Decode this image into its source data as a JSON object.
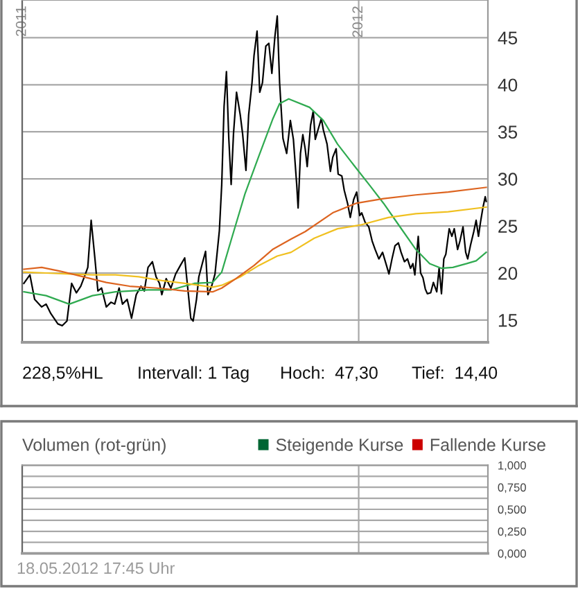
{
  "chart_data": [
    {
      "type": "line",
      "xlim": [
        2011.0,
        2012.384
      ],
      "xticks": [
        2011,
        2012
      ],
      "ylim": [
        12.64,
        49.0
      ],
      "yticks": [
        15,
        20,
        25,
        30,
        35,
        40,
        45
      ],
      "grid": true,
      "series": [
        {
          "color": "#000000",
          "x": [
            2011.005,
            2011.023,
            2011.037,
            2011.058,
            2011.071,
            2011.085,
            2011.106,
            2011.119,
            2011.133,
            2011.147,
            2011.161,
            2011.174,
            2011.188,
            2011.195,
            2011.205,
            2011.216,
            2011.225,
            2011.236,
            2011.25,
            2011.264,
            2011.275,
            2011.288,
            2011.298,
            2011.312,
            2011.325,
            2011.339,
            2011.353,
            2011.363,
            2011.374,
            2011.387,
            2011.398,
            2011.408,
            2011.415,
            2011.428,
            2011.442,
            2011.456,
            2011.47,
            2011.483,
            2011.494,
            2011.501,
            2011.508,
            2011.518,
            2011.525,
            2011.536,
            2011.545,
            2011.552,
            2011.563,
            2011.573,
            2011.586,
            2011.593,
            2011.6,
            2011.607,
            2011.614,
            2011.621,
            2011.628,
            2011.637,
            2011.648,
            2011.655,
            2011.665,
            2011.673,
            2011.683,
            2011.689,
            2011.698,
            2011.706,
            2011.714,
            2011.724,
            2011.733,
            2011.742,
            2011.751,
            2011.758,
            2011.765,
            2011.775,
            2011.786,
            2011.797,
            2011.806,
            2011.816,
            2011.82,
            2011.827,
            2011.834,
            2011.841,
            2011.847,
            2011.857,
            2011.865,
            2011.871,
            2011.879,
            2011.889,
            2011.895,
            2011.906,
            2011.916,
            2011.923,
            2011.933,
            2011.939,
            2011.95,
            2011.957,
            2011.967,
            2011.975,
            2011.985,
            2011.994,
            2012.003,
            2012.009,
            2012.019,
            2012.03,
            2012.04,
            2012.049,
            2012.06,
            2012.071,
            2012.081,
            2012.09,
            2012.099,
            2012.108,
            2012.118,
            2012.126,
            2012.136,
            2012.145,
            2012.154,
            2012.161,
            2012.167,
            2012.177,
            2012.184,
            2012.191,
            2012.198,
            2012.204,
            2012.214,
            2012.222,
            2012.232,
            2012.239,
            2012.246,
            2012.253,
            2012.259,
            2012.269,
            2012.277,
            2012.284,
            2012.294,
            2012.301,
            2012.31,
            2012.318,
            2012.324,
            2012.332,
            2012.342,
            2012.349,
            2012.356,
            2012.362,
            2012.369,
            2012.376,
            2012.379
          ],
          "values": [
            18.9,
            19.8,
            17.2,
            16.4,
            16.7,
            15.7,
            14.6,
            14.4,
            14.9,
            18.9,
            17.9,
            18.6,
            19.9,
            20.6,
            25.6,
            21.6,
            18.1,
            18.4,
            16.4,
            16.9,
            16.7,
            18.4,
            16.7,
            17.2,
            15.2,
            17.7,
            18.6,
            18.1,
            20.6,
            21.2,
            19.6,
            18.9,
            17.7,
            19.4,
            18.4,
            19.9,
            20.8,
            21.6,
            17.7,
            15.2,
            14.9,
            17.2,
            19.6,
            21.1,
            22.3,
            17.7,
            18.6,
            19.9,
            24.5,
            29.4,
            37.7,
            41.4,
            34.3,
            29.4,
            34.8,
            39.2,
            36.8,
            34.8,
            30.9,
            36.8,
            40.2,
            43.1,
            45.7,
            39.2,
            40.2,
            44.1,
            44.4,
            41.2,
            45.1,
            47.3,
            40.2,
            34.3,
            32.7,
            36.2,
            34.2,
            29.3,
            26.9,
            32.7,
            34.7,
            33.2,
            31.3,
            35.7,
            37.2,
            34.2,
            35.2,
            36.4,
            35.2,
            33.7,
            30.8,
            32.3,
            33.2,
            30.5,
            30.3,
            28.8,
            27.4,
            25.9,
            27.8,
            28.6,
            26.1,
            26.4,
            25.4,
            24.9,
            23.4,
            22.5,
            21.5,
            22.2,
            21.0,
            19.9,
            21.5,
            22.9,
            23.2,
            22.2,
            21.2,
            21.5,
            20.5,
            21.0,
            19.8,
            23.9,
            20.0,
            19.5,
            18.3,
            17.8,
            17.9,
            19.0,
            18.0,
            20.5,
            17.8,
            21.5,
            22.0,
            24.7,
            23.9,
            24.7,
            22.5,
            23.4,
            24.9,
            22.2,
            21.5,
            22.9,
            24.4,
            25.6,
            23.9,
            25.4,
            26.9,
            28.1,
            27.6
          ]
        },
        {
          "color": "#2faa50",
          "x": [
            2011.005,
            2011.071,
            2011.14,
            2011.209,
            2011.277,
            2011.374,
            2011.442,
            2011.511,
            2011.566,
            2011.593,
            2011.621,
            2011.662,
            2011.703,
            2011.744,
            2011.765,
            2011.792,
            2011.854,
            2011.895,
            2011.937,
            2011.978,
            2012.033,
            2012.074,
            2012.115,
            2012.17,
            2012.211,
            2012.246,
            2012.28,
            2012.321,
            2012.349,
            2012.379
          ],
          "values": [
            18.0,
            17.6,
            16.7,
            17.6,
            18.0,
            18.2,
            18.2,
            18.9,
            19.0,
            20.1,
            23.5,
            28.4,
            32.4,
            36.3,
            38.0,
            38.5,
            37.6,
            36.2,
            33.7,
            31.8,
            29.3,
            27.4,
            25.3,
            22.5,
            21.0,
            20.5,
            20.6,
            21.0,
            21.3,
            22.2
          ]
        },
        {
          "color": "#f0c020",
          "x": [
            2011.005,
            2011.071,
            2011.14,
            2011.209,
            2011.277,
            2011.346,
            2011.415,
            2011.483,
            2011.566,
            2011.593,
            2011.648,
            2011.703,
            2011.758,
            2011.799,
            2011.868,
            2011.937,
            2012.005,
            2012.088,
            2012.17,
            2012.266,
            2012.379
          ],
          "values": [
            20.1,
            20.0,
            19.9,
            19.8,
            19.8,
            19.6,
            19.2,
            18.9,
            18.5,
            18.7,
            19.6,
            20.8,
            21.8,
            22.2,
            23.7,
            24.7,
            25.1,
            25.9,
            26.3,
            26.5,
            27.0
          ]
        },
        {
          "color": "#dd6420",
          "x": [
            2011.005,
            2011.058,
            2011.113,
            2011.181,
            2011.25,
            2011.319,
            2011.401,
            2011.483,
            2011.566,
            2011.593,
            2011.635,
            2011.689,
            2011.744,
            2011.799,
            2011.841,
            2011.923,
            2011.992,
            2012.074,
            2012.17,
            2012.266,
            2012.379
          ],
          "values": [
            20.4,
            20.6,
            20.2,
            19.6,
            19.0,
            18.6,
            18.4,
            18.1,
            18.0,
            18.4,
            19.4,
            20.8,
            22.5,
            23.6,
            24.4,
            26.4,
            27.4,
            27.9,
            28.3,
            28.6,
            29.1
          ]
        }
      ],
      "annotations": [
        "228,5%HL",
        "Intervall: 1 Tag",
        "Hoch:  47,30",
        "Tief:  14,40"
      ]
    },
    {
      "type": "bar",
      "title": "Volumen (rot-grün)",
      "ylim": [
        0.0,
        1.0
      ],
      "yticks": [
        {
          "value": 0.0,
          "label": "0,000"
        },
        {
          "value": 0.125,
          "label": null
        },
        {
          "value": 0.25,
          "label": "0,250"
        },
        {
          "value": 0.375,
          "label": null
        },
        {
          "value": 0.5,
          "label": "0,500"
        },
        {
          "value": 0.625,
          "label": null
        },
        {
          "value": 0.75,
          "label": "0,750"
        },
        {
          "value": 0.875,
          "label": null
        },
        {
          "value": 1.0,
          "label": "1,000"
        }
      ],
      "grid": true,
      "tick_labels": "y",
      "legend": "top right",
      "series": [
        {
          "name": "Steigende Kurse",
          "color": "#006633"
        },
        {
          "name": "Fallende Kurse",
          "color": "#cc0000"
        }
      ],
      "annotations": [
        "18.05.2012 17:45 Uhr"
      ]
    }
  ]
}
